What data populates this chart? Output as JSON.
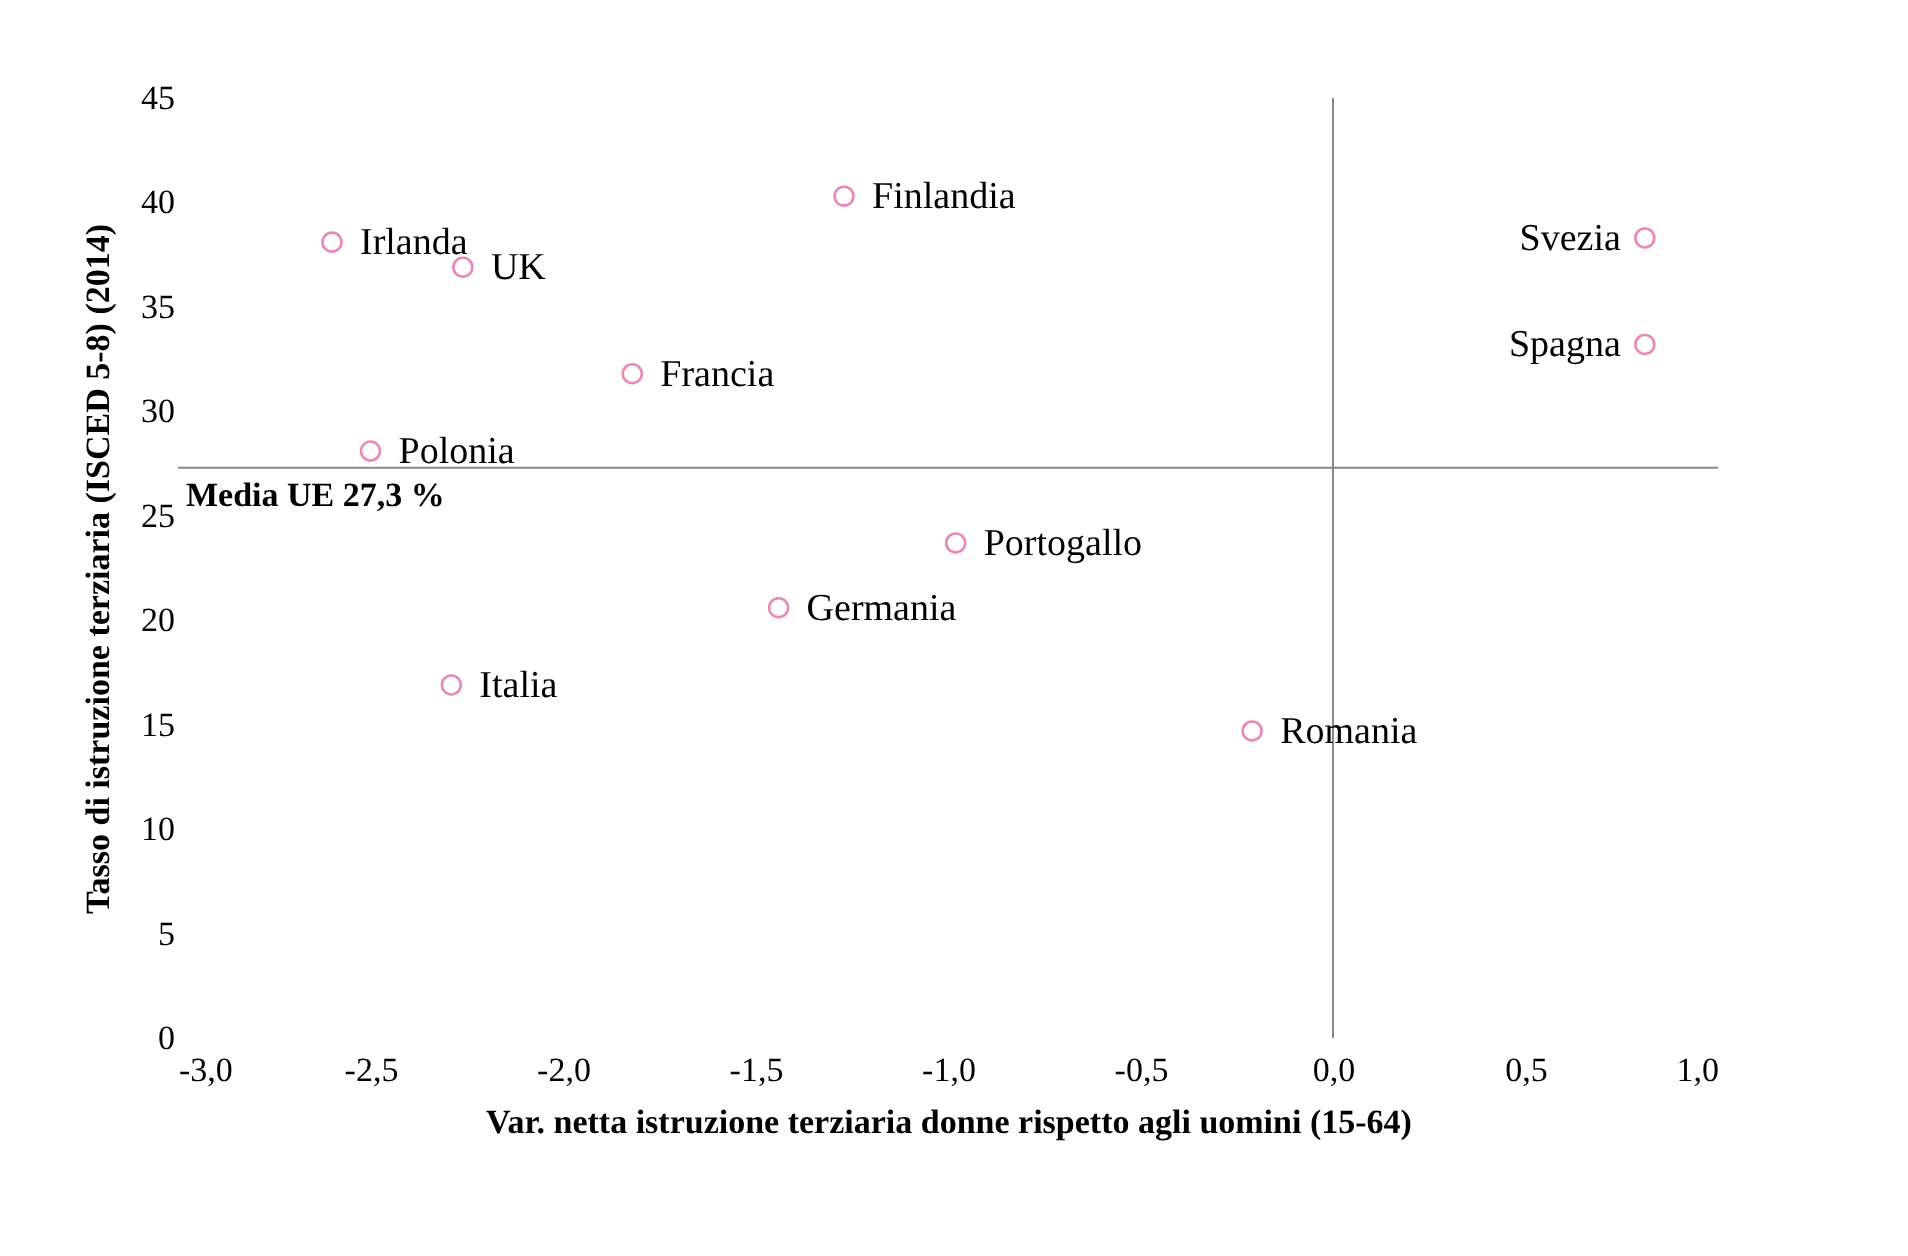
{
  "chart_data": {
    "type": "scatter",
    "xlabel": "Var. netta istruzione terziaria donne rispetto agli uomini (15-64)",
    "ylabel": "Tasso di istruzione terziaria (ISCED 5-8) (2014)",
    "x": [
      -2.6,
      -2.26,
      -1.27,
      0.81,
      0.81,
      -1.82,
      -2.5,
      -0.98,
      -1.44,
      -2.29,
      -0.21
    ],
    "series": [
      {
        "color": "#e0559b",
        "values": [
          38.1,
          36.9,
          40.3,
          38.3,
          33.2,
          31.8,
          28.1,
          23.7,
          20.6,
          16.9,
          14.7
        ]
      }
    ],
    "annotations": [
      {
        "text": "Irlanda",
        "x": -2.6,
        "y": 38.1
      },
      {
        "text": "UK",
        "x": -2.26,
        "y": 36.9
      },
      {
        "text": "Finlandia",
        "x": -1.27,
        "y": 40.3
      },
      {
        "text": "Svezia",
        "x": 0.81,
        "y": 38.3
      },
      {
        "text": "Spagna",
        "x": 0.81,
        "y": 33.2
      },
      {
        "text": "Francia",
        "x": -1.82,
        "y": 31.8
      },
      {
        "text": "Polonia",
        "x": -2.5,
        "y": 28.1
      },
      {
        "text": "Portogallo",
        "x": -0.98,
        "y": 23.7
      },
      {
        "text": "Germania",
        "x": -1.44,
        "y": 20.6
      },
      {
        "text": "Italia",
        "x": -2.29,
        "y": 16.9
      },
      {
        "text": "Romania",
        "x": -0.21,
        "y": 14.7
      }
    ],
    "ref_lines": [
      {
        "axis": "y",
        "value": 27.3,
        "label": "Media UE  27,3 %"
      },
      {
        "axis": "x",
        "value": 0,
        "label": null
      }
    ],
    "xlim": [
      -3,
      1
    ],
    "xticks": [
      {
        "value": -3,
        "label": "-3,0"
      },
      {
        "value": -2.5,
        "label": "-2,5"
      },
      {
        "value": -2,
        "label": "-2,0"
      },
      {
        "value": -1.5,
        "label": "-1,5"
      },
      {
        "value": -1,
        "label": "-1,0"
      },
      {
        "value": -0.5,
        "label": "-0,5"
      },
      {
        "value": 0,
        "label": "0,0"
      },
      {
        "value": 0.5,
        "label": "0,5"
      },
      {
        "value": 1,
        "label": "1,0"
      }
    ],
    "ylim": [
      0,
      45
    ],
    "yticks": [
      0,
      5,
      10,
      15,
      20,
      25,
      30,
      35,
      40,
      45
    ],
    "marker": "circle",
    "grid": false
  }
}
